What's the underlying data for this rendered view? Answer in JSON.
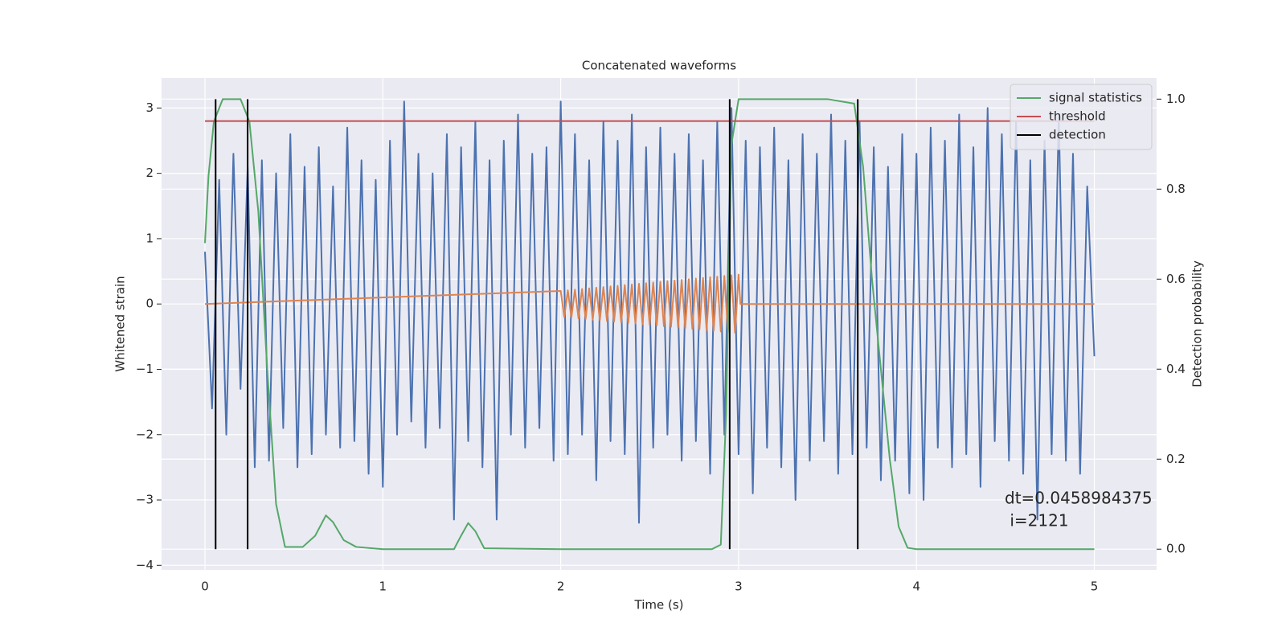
{
  "chart_data": {
    "type": "line",
    "title": "Concatenated waveforms",
    "x_label": "Time (s)",
    "y_label": "Whitened strain",
    "y2_label": "Detection probability",
    "xlim": [
      -0.244,
      5.35
    ],
    "ylim": [
      -4.07,
      3.46
    ],
    "y2lim": [
      -0.046,
      1.047
    ],
    "xticks": [
      0,
      1,
      2,
      3,
      4,
      5
    ],
    "yticks": [
      {
        "value": -4,
        "label": "−4"
      },
      {
        "value": -3,
        "label": "−3"
      },
      {
        "value": -2,
        "label": "−2"
      },
      {
        "value": -1,
        "label": "−1"
      },
      0,
      1,
      2,
      3
    ],
    "y2ticks": [
      {
        "value": 0,
        "label": "0.0"
      },
      0.2,
      0.4,
      0.6,
      0.8,
      {
        "value": 1,
        "label": "1.0"
      }
    ],
    "grid": true,
    "legend": "upper right",
    "annotation": [
      "dt=0.0458984375",
      " i=2121"
    ],
    "series": [
      {
        "color": "#4c72b0",
        "axis": "y",
        "x": [
          0,
          0.04,
          0.08,
          0.12,
          0.16,
          0.2,
          0.24,
          0.28,
          0.32,
          0.36,
          0.4,
          0.44,
          0.48,
          0.52,
          0.56,
          0.6,
          0.64,
          0.68,
          0.72,
          0.76,
          0.8,
          0.84,
          0.88,
          0.92,
          0.96,
          1,
          1.04,
          1.08,
          1.12,
          1.16,
          1.2,
          1.24,
          1.28,
          1.32,
          1.36,
          1.4,
          1.44,
          1.48,
          1.52,
          1.56,
          1.6,
          1.64,
          1.68,
          1.72,
          1.76,
          1.8,
          1.84,
          1.88,
          1.92,
          1.96,
          2,
          2.04,
          2.08,
          2.12,
          2.16,
          2.2,
          2.24,
          2.28,
          2.32,
          2.36,
          2.4,
          2.44,
          2.48,
          2.52,
          2.56,
          2.6,
          2.64,
          2.68,
          2.72,
          2.76,
          2.8,
          2.84,
          2.88,
          2.92,
          2.96,
          3,
          3.04,
          3.08,
          3.12,
          3.16,
          3.2,
          3.24,
          3.28,
          3.32,
          3.36,
          3.4,
          3.44,
          3.48,
          3.52,
          3.56,
          3.6,
          3.64,
          3.68,
          3.72,
          3.76,
          3.8,
          3.84,
          3.88,
          3.92,
          3.96,
          4,
          4.04,
          4.08,
          4.12,
          4.16,
          4.2,
          4.24,
          4.28,
          4.32,
          4.36,
          4.4,
          4.44,
          4.48,
          4.52,
          4.56,
          4.6,
          4.64,
          4.68,
          4.72,
          4.76,
          4.8,
          4.84,
          4.88,
          4.92,
          4.96,
          5
        ],
        "values": [
          0.8,
          -1.6,
          1.9,
          -2.0,
          2.3,
          -1.3,
          2.1,
          -2.5,
          2.2,
          -2.4,
          2.0,
          -1.9,
          2.6,
          -2.5,
          2.1,
          -2.3,
          2.4,
          -2.0,
          1.8,
          -2.2,
          2.7,
          -2.1,
          2.2,
          -2.6,
          1.9,
          -2.8,
          2.5,
          -2.0,
          3.1,
          -1.8,
          2.3,
          -2.2,
          2.0,
          -1.9,
          2.6,
          -3.3,
          2.4,
          -2.1,
          2.8,
          -2.5,
          2.2,
          -3.3,
          2.5,
          -2.0,
          2.9,
          -2.2,
          2.3,
          -1.9,
          2.4,
          -2.4,
          3.1,
          -2.3,
          2.6,
          -2.0,
          2.2,
          -2.7,
          2.8,
          -2.1,
          2.5,
          -2.3,
          2.9,
          -3.35,
          2.4,
          -2.2,
          2.7,
          -2.0,
          2.3,
          -2.4,
          2.6,
          -2.1,
          2.2,
          -2.6,
          2.8,
          -2.0,
          3.0,
          -2.3,
          2.5,
          -2.9,
          2.4,
          -2.2,
          2.7,
          -2.5,
          2.2,
          -3.0,
          2.6,
          -2.4,
          2.3,
          -2.1,
          2.9,
          -2.6,
          2.5,
          -2.3,
          2.8,
          -2.2,
          2.4,
          -2.7,
          2.1,
          -2.4,
          2.6,
          -2.9,
          2.3,
          -3.0,
          2.7,
          -2.2,
          2.5,
          -2.5,
          2.9,
          -2.3,
          2.4,
          -2.8,
          3.0,
          -2.1,
          2.6,
          -2.4,
          2.8,
          -2.6,
          2.2,
          -3.3,
          2.5,
          -2.3,
          2.9,
          -2.4,
          2.3,
          -2.6,
          1.8,
          -0.8
        ]
      },
      {
        "color": "#dd8452",
        "axis": "y",
        "x": [
          0,
          2,
          2.02,
          2.04,
          2.06,
          2.08,
          2.1,
          2.12,
          2.14,
          2.16,
          2.18,
          2.2,
          2.22,
          2.24,
          2.26,
          2.28,
          2.3,
          2.32,
          2.34,
          2.36,
          2.38,
          2.4,
          2.42,
          2.44,
          2.46,
          2.48,
          2.5,
          2.52,
          2.54,
          2.56,
          2.58,
          2.6,
          2.62,
          2.64,
          2.66,
          2.68,
          2.7,
          2.72,
          2.74,
          2.76,
          2.78,
          2.8,
          2.82,
          2.84,
          2.86,
          2.88,
          2.9,
          2.92,
          2.94,
          2.96,
          2.98,
          3,
          3.01,
          5
        ],
        "values": [
          0,
          0.2,
          -0.2,
          0.21,
          -0.21,
          0.22,
          -0.22,
          0.23,
          -0.23,
          0.24,
          -0.24,
          0.25,
          -0.25,
          0.26,
          -0.26,
          0.27,
          -0.27,
          0.28,
          -0.28,
          0.29,
          -0.29,
          0.3,
          -0.3,
          0.31,
          -0.31,
          0.32,
          -0.32,
          0.33,
          -0.33,
          0.34,
          -0.34,
          0.35,
          -0.35,
          0.36,
          -0.36,
          0.37,
          -0.37,
          0.38,
          -0.38,
          0.39,
          -0.39,
          0.4,
          -0.4,
          0.41,
          -0.41,
          0.42,
          -0.42,
          0.43,
          -0.43,
          0.44,
          -0.44,
          0.45,
          0,
          0
        ]
      },
      {
        "name": "signal statistics",
        "color": "#55a868",
        "axis": "y2",
        "x": [
          0,
          0.02,
          0.05,
          0.1,
          0.2,
          0.25,
          0.3,
          0.35,
          0.4,
          0.45,
          0.55,
          0.62,
          0.68,
          0.72,
          0.78,
          0.85,
          1,
          1.4,
          1.44,
          1.48,
          1.52,
          1.57,
          2,
          2.85,
          2.9,
          2.93,
          2.96,
          3,
          3.5,
          3.65,
          3.7,
          3.75,
          3.8,
          3.85,
          3.9,
          3.95,
          4,
          5
        ],
        "values": [
          0.68,
          0.83,
          0.95,
          1,
          1,
          0.95,
          0.75,
          0.4,
          0.1,
          0.005,
          0.005,
          0.03,
          0.075,
          0.06,
          0.02,
          0.005,
          0,
          0,
          0.03,
          0.058,
          0.04,
          0.002,
          0,
          0,
          0.01,
          0.3,
          0.9,
          1,
          1,
          0.99,
          0.85,
          0.6,
          0.4,
          0.2,
          0.05,
          0.003,
          0,
          0
        ]
      },
      {
        "name": "threshold",
        "color": "#c44e52",
        "axis": "y",
        "x": [
          0,
          5
        ],
        "values": [
          2.8,
          2.8
        ]
      },
      {
        "name": "detection",
        "color": "#000000",
        "axis": "y2",
        "x": [
          0.06,
          0.24,
          2.95,
          3.67
        ],
        "ymin": 0,
        "ymax": 1
      }
    ]
  }
}
